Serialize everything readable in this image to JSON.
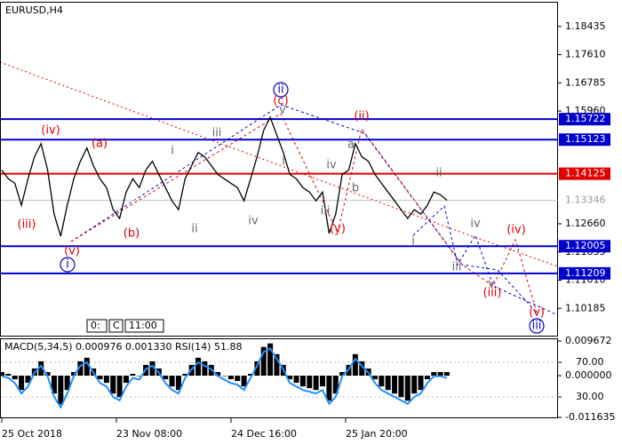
{
  "chart_data": [
    {
      "type": "line",
      "title": "EURUSD,H4",
      "series": [
        {
          "name": "EURUSD",
          "color": "#000000",
          "values": [
            1.14233,
            1.13975,
            1.13846,
            1.13202,
            1.13975,
            1.14619,
            1.15006,
            1.14233,
            1.12944,
            1.12299,
            1.13202,
            1.13975,
            1.14491,
            1.14877,
            1.14362,
            1.13975,
            1.13717,
            1.13073,
            1.12815,
            1.13588,
            1.13975,
            1.13717,
            1.14233,
            1.14491,
            1.14104,
            1.13717,
            1.1333,
            1.13073,
            1.13975,
            1.14362,
            1.14748,
            1.14619,
            1.14362,
            1.14104,
            1.13975,
            1.13846,
            1.13717,
            1.1333,
            1.13975,
            1.14619,
            1.15393,
            1.1578,
            1.15264,
            1.14748,
            1.14104,
            1.13975,
            1.13717,
            1.13588,
            1.1333,
            1.13588,
            1.12377,
            1.12944,
            1.14104,
            1.14233,
            1.15006,
            1.14619,
            1.14491,
            1.14104,
            1.13846,
            1.13588,
            1.1333,
            1.13073,
            1.12815,
            1.13073,
            1.12944,
            1.13202,
            1.13588,
            1.13511,
            1.13346
          ]
        }
      ],
      "ylim": [
        1.09386,
        1.19131
      ],
      "yticks": [
        1.18435,
        {
          "value": 1.1761,
          "label": "1.17610"
        },
        1.16785,
        {
          "value": 1.1596,
          "label": "1.15960"
        },
        {
          "value": 1.1266,
          "label": "1.12660"
        },
        1.11835,
        {
          "value": 1.1101,
          "label": "1.11010"
        },
        1.10185
      ],
      "levels": [
        {
          "value": 1.15722,
          "color": "#0000cc"
        },
        {
          "value": 1.15123,
          "color": "#0000cc"
        },
        {
          "value": 1.14125,
          "color": "#e00000"
        },
        {
          "value": 1.13346,
          "color": "#c0c0c0"
        },
        {
          "value": 1.12005,
          "color": "#0000cc"
        },
        {
          "value": 1.11209,
          "color": "#0000cc"
        }
      ],
      "annotations": [
        {
          "text": "(iii)",
          "color": "#e00000"
        },
        {
          "text": "(iv)",
          "color": "#e00000"
        },
        {
          "text": "(a)",
          "color": "#e00000"
        },
        {
          "text": "(v)",
          "color": "#e00000"
        },
        {
          "text": "i",
          "color": "#0000cc",
          "circled": true
        },
        {
          "text": "(b)",
          "color": "#e00000"
        },
        {
          "text": "i",
          "color": "#666666"
        },
        {
          "text": "ii",
          "color": "#666666"
        },
        {
          "text": "iii",
          "color": "#666666"
        },
        {
          "text": "iv",
          "color": "#666666"
        },
        {
          "text": "ii",
          "color": "#0000cc",
          "circled": true
        },
        {
          "text": "(c)",
          "color": "#e00000"
        },
        {
          "text": "v",
          "color": "#666666"
        },
        {
          "text": "i",
          "color": "#666666"
        },
        {
          "text": "iv",
          "color": "#666666"
        },
        {
          "text": "a",
          "color": "#666666"
        },
        {
          "text": "(ii)",
          "color": "#e00000"
        },
        {
          "text": "b",
          "color": "#666666"
        },
        {
          "text": "iii",
          "color": "#666666"
        },
        {
          "text": "(y)",
          "color": "#e00000"
        },
        {
          "text": "ii",
          "color": "#666666"
        },
        {
          "text": "i",
          "color": "#666666"
        },
        {
          "text": "iv",
          "color": "#666666"
        },
        {
          "text": "(iv)",
          "color": "#e00000"
        },
        {
          "text": "iii",
          "color": "#666666"
        },
        {
          "text": "v",
          "color": "#666666"
        },
        {
          "text": "(iii)",
          "color": "#e00000"
        },
        {
          "text": "(v)",
          "color": "#e00000"
        },
        {
          "text": "iii",
          "color": "#0000cc",
          "circled": true
        }
      ],
      "buttons": [
        "0:",
        "C",
        "11:00"
      ],
      "x_labels": [
        "25 Oct 2018",
        "23 Nov 08:00",
        "24 Dec 16:00",
        "25 Jan 20:00"
      ]
    },
    {
      "type": "bar",
      "title": "MACD(5,34,5) 0.000976 0.001330 RSI(14) 51.88",
      "series": [
        {
          "name": "MACD",
          "color": "#000000",
          "values": [
            0.001,
            0.0005,
            -0.001,
            -0.004,
            -0.002,
            0.002,
            0.004,
            0.001,
            -0.005,
            -0.008,
            -0.004,
            0.001,
            0.004,
            0.005,
            0.002,
            -0.001,
            -0.002,
            -0.005,
            -0.006,
            -0.002,
            0.0005,
            0.0,
            0.003,
            0.004,
            0.002,
            -0.001,
            -0.003,
            -0.004,
            0.0005,
            0.003,
            0.005,
            0.004,
            0.003,
            0.001,
            0.0,
            -0.001,
            -0.0015,
            -0.003,
            0.0005,
            0.004,
            0.008,
            0.009,
            0.006,
            0.003,
            -0.001,
            -0.002,
            -0.003,
            -0.0035,
            -0.004,
            -0.003,
            -0.007,
            -0.005,
            0.001,
            0.003,
            0.006,
            0.004,
            0.002,
            -0.001,
            -0.003,
            -0.004,
            -0.005,
            -0.006,
            -0.007,
            -0.005,
            -0.004,
            -0.001,
            0.001,
            0.001,
            0.001
          ]
        },
        {
          "name": "RSI",
          "color": "#1e90ff",
          "axis": "y2",
          "values": [
            54,
            52,
            46,
            34,
            42,
            58,
            66,
            54,
            30,
            18,
            34,
            54,
            66,
            70,
            58,
            46,
            42,
            30,
            26,
            42,
            52,
            50,
            62,
            66,
            58,
            46,
            38,
            34,
            52,
            62,
            70,
            66,
            62,
            54,
            50,
            46,
            44,
            38,
            52,
            66,
            82,
            86,
            74,
            62,
            46,
            42,
            38,
            36,
            34,
            38,
            22,
            30,
            54,
            62,
            74,
            66,
            58,
            46,
            38,
            34,
            30,
            26,
            22,
            30,
            34,
            46,
            54,
            54,
            51.88
          ]
        }
      ],
      "ylim": [
        -0.011635,
        0.009672
      ],
      "yticks": [
        {
          "value": 0.009672,
          "label": "0.009672"
        },
        {
          "value": 0,
          "label": "0.000000"
        },
        {
          "value": -0.011635,
          "label": "-0.011635"
        }
      ],
      "y2lim": [
        6.4,
        94.6
      ],
      "y2ticks": [
        {
          "value": 70,
          "label": "70.00"
        },
        {
          "value": 30,
          "label": "30.00"
        }
      ]
    }
  ]
}
